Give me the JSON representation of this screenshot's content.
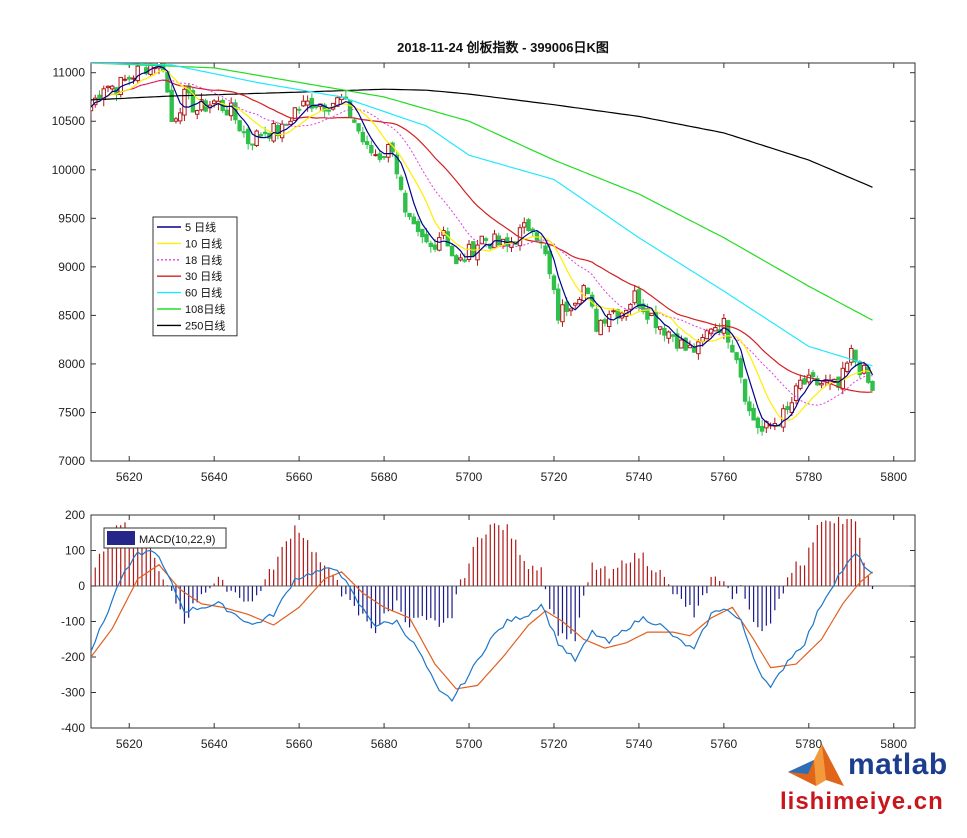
{
  "chart_data": [
    {
      "type": "candlestick",
      "title": "2018-11-24  创板指数 - 399006日K图",
      "xlim": [
        5611,
        5805
      ],
      "ylim": [
        7000,
        11100
      ],
      "xticks": [
        5620,
        5640,
        5660,
        5680,
        5700,
        5720,
        5740,
        5760,
        5780,
        5800
      ],
      "yticks": [
        7000,
        7500,
        8000,
        8500,
        9000,
        9500,
        10000,
        10500,
        11000
      ],
      "grid": false,
      "legend_position": "left-middle",
      "up_color": "#b01818",
      "down_color": "#2fc04a",
      "close_anchors": [
        [
          5611,
          10650
        ],
        [
          5614,
          10880
        ],
        [
          5617,
          10850
        ],
        [
          5620,
          10950
        ],
        [
          5623,
          11050
        ],
        [
          5626,
          11100
        ],
        [
          5628,
          11080
        ],
        [
          5630,
          10500
        ],
        [
          5633,
          10750
        ],
        [
          5636,
          10620
        ],
        [
          5640,
          10700
        ],
        [
          5644,
          10600
        ],
        [
          5648,
          10300
        ],
        [
          5652,
          10400
        ],
        [
          5656,
          10400
        ],
        [
          5659,
          10620
        ],
        [
          5663,
          10700
        ],
        [
          5666,
          10680
        ],
        [
          5670,
          10720
        ],
        [
          5673,
          10500
        ],
        [
          5676,
          10200
        ],
        [
          5679,
          10150
        ],
        [
          5682,
          10250
        ],
        [
          5685,
          9500
        ],
        [
          5688,
          9300
        ],
        [
          5691,
          9200
        ],
        [
          5694,
          9400
        ],
        [
          5697,
          9000
        ],
        [
          5700,
          9150
        ],
        [
          5703,
          9300
        ],
        [
          5706,
          9250
        ],
        [
          5709,
          9200
        ],
        [
          5712,
          9350
        ],
        [
          5715,
          9450
        ],
        [
          5718,
          9100
        ],
        [
          5721,
          8500
        ],
        [
          5724,
          8650
        ],
        [
          5727,
          8800
        ],
        [
          5730,
          8400
        ],
        [
          5733,
          8550
        ],
        [
          5736,
          8550
        ],
        [
          5739,
          8700
        ],
        [
          5742,
          8550
        ],
        [
          5745,
          8400
        ],
        [
          5748,
          8300
        ],
        [
          5751,
          8150
        ],
        [
          5754,
          8150
        ],
        [
          5757,
          8400
        ],
        [
          5760,
          8400
        ],
        [
          5763,
          8100
        ],
        [
          5766,
          7500
        ],
        [
          5769,
          7300
        ],
        [
          5772,
          7400
        ],
        [
          5775,
          7500
        ],
        [
          5778,
          7800
        ],
        [
          5781,
          7800
        ],
        [
          5784,
          7800
        ],
        [
          5787,
          7750
        ],
        [
          5790,
          8100
        ],
        [
          5793,
          7900
        ],
        [
          5795,
          7700
        ]
      ],
      "series": [
        {
          "name": "5 日线",
          "color": "#00008b",
          "dash": "",
          "width": 1.2
        },
        {
          "name": "10 日线",
          "color": "#ffee00",
          "dash": "",
          "width": 1.2
        },
        {
          "name": "18 日线",
          "color": "#e040e0",
          "dash": "2,2",
          "width": 1.0
        },
        {
          "name": "30 日线",
          "color": "#d42020",
          "dash": "",
          "width": 1.2
        },
        {
          "name": "60 日线",
          "color": "#22e8ff",
          "dash": "",
          "width": 1.2
        },
        {
          "name": "108日线",
          "color": "#22dd22",
          "dash": "",
          "width": 1.2
        },
        {
          "name": "250日线",
          "color": "#000000",
          "dash": "",
          "width": 1.2
        }
      ],
      "ma250_anchors": [
        [
          5611,
          10720
        ],
        [
          5630,
          10760
        ],
        [
          5660,
          10800
        ],
        [
          5680,
          10830
        ],
        [
          5690,
          10820
        ],
        [
          5700,
          10780
        ],
        [
          5720,
          10670
        ],
        [
          5740,
          10550
        ],
        [
          5760,
          10380
        ],
        [
          5780,
          10100
        ],
        [
          5795,
          9820
        ]
      ],
      "ma108_anchors": [
        [
          5611,
          11100
        ],
        [
          5640,
          11050
        ],
        [
          5660,
          10900
        ],
        [
          5680,
          10750
        ],
        [
          5700,
          10500
        ],
        [
          5720,
          10100
        ],
        [
          5740,
          9750
        ],
        [
          5760,
          9300
        ],
        [
          5780,
          8800
        ],
        [
          5795,
          8450
        ]
      ],
      "ma60_anchors": [
        [
          5611,
          11100
        ],
        [
          5630,
          11080
        ],
        [
          5650,
          10900
        ],
        [
          5670,
          10750
        ],
        [
          5690,
          10450
        ],
        [
          5700,
          10150
        ],
        [
          5720,
          9900
        ],
        [
          5740,
          9300
        ],
        [
          5760,
          8750
        ],
        [
          5780,
          8180
        ],
        [
          5795,
          7980
        ]
      ]
    },
    {
      "type": "macd",
      "legend": "MACD(10,22,9)",
      "xlim": [
        5611,
        5805
      ],
      "ylim": [
        -400,
        200
      ],
      "xticks": [
        5620,
        5640,
        5660,
        5680,
        5700,
        5720,
        5740,
        5760,
        5780,
        5800
      ],
      "yticks": [
        -400,
        -300,
        -200,
        -100,
        0,
        100,
        200
      ],
      "hist_pos_color": "#b01818",
      "hist_neg_color": "#1a1a8a",
      "dif_color": "#1f77c8",
      "dea_color": "#e06020",
      "dif_anchors": [
        [
          5611,
          -180
        ],
        [
          5614,
          -100
        ],
        [
          5618,
          20
        ],
        [
          5622,
          90
        ],
        [
          5626,
          100
        ],
        [
          5629,
          30
        ],
        [
          5633,
          -70
        ],
        [
          5637,
          -60
        ],
        [
          5641,
          -50
        ],
        [
          5645,
          -80
        ],
        [
          5649,
          -110
        ],
        [
          5654,
          -80
        ],
        [
          5659,
          20
        ],
        [
          5664,
          40
        ],
        [
          5669,
          50
        ],
        [
          5674,
          -50
        ],
        [
          5678,
          -110
        ],
        [
          5683,
          -100
        ],
        [
          5688,
          -180
        ],
        [
          5693,
          -300
        ],
        [
          5696,
          -320
        ],
        [
          5700,
          -250
        ],
        [
          5705,
          -150
        ],
        [
          5709,
          -100
        ],
        [
          5714,
          -80
        ],
        [
          5717,
          -50
        ],
        [
          5721,
          -160
        ],
        [
          5725,
          -210
        ],
        [
          5729,
          -130
        ],
        [
          5733,
          -160
        ],
        [
          5737,
          -120
        ],
        [
          5741,
          -90
        ],
        [
          5745,
          -110
        ],
        [
          5749,
          -150
        ],
        [
          5753,
          -180
        ],
        [
          5757,
          -80
        ],
        [
          5760,
          -60
        ],
        [
          5764,
          -100
        ],
        [
          5768,
          -230
        ],
        [
          5771,
          -290
        ],
        [
          5775,
          -210
        ],
        [
          5779,
          -160
        ],
        [
          5783,
          -50
        ],
        [
          5787,
          30
        ],
        [
          5791,
          90
        ],
        [
          5795,
          30
        ]
      ],
      "dea_anchors": [
        [
          5611,
          -200
        ],
        [
          5616,
          -120
        ],
        [
          5622,
          20
        ],
        [
          5627,
          60
        ],
        [
          5632,
          -10
        ],
        [
          5637,
          -50
        ],
        [
          5642,
          -60
        ],
        [
          5648,
          -80
        ],
        [
          5654,
          -110
        ],
        [
          5660,
          -60
        ],
        [
          5666,
          20
        ],
        [
          5670,
          40
        ],
        [
          5675,
          -20
        ],
        [
          5680,
          -60
        ],
        [
          5686,
          -90
        ],
        [
          5692,
          -220
        ],
        [
          5697,
          -290
        ],
        [
          5702,
          -280
        ],
        [
          5708,
          -200
        ],
        [
          5714,
          -110
        ],
        [
          5718,
          -70
        ],
        [
          5722,
          -100
        ],
        [
          5727,
          -150
        ],
        [
          5732,
          -175
        ],
        [
          5737,
          -160
        ],
        [
          5742,
          -130
        ],
        [
          5748,
          -130
        ],
        [
          5752,
          -140
        ],
        [
          5757,
          -90
        ],
        [
          5762,
          -60
        ],
        [
          5767,
          -150
        ],
        [
          5771,
          -230
        ],
        [
          5777,
          -220
        ],
        [
          5783,
          -150
        ],
        [
          5788,
          -50
        ],
        [
          5792,
          10
        ],
        [
          5795,
          40
        ]
      ]
    }
  ],
  "watermark": {
    "logo_name": "matlab",
    "site": "lishimeiye.cn"
  }
}
